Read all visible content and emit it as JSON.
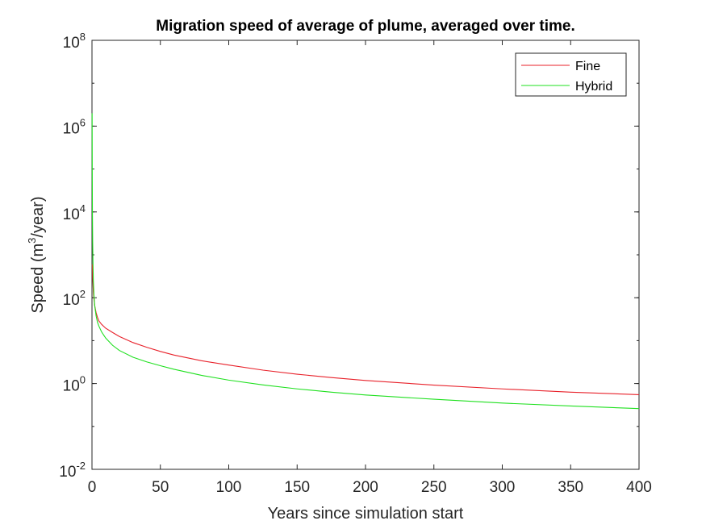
{
  "chart_data": {
    "type": "line",
    "title": "Migration speed of average of plume, averaged over time.",
    "xlabel": "Years since simulation start",
    "ylabel": {
      "prefix": "Speed (m",
      "superscript": "3",
      "suffix": "/year)"
    },
    "xlim": [
      0,
      400
    ],
    "ylim": [
      0.01,
      100000000
    ],
    "yscale": "log",
    "xticks": [
      0,
      50,
      100,
      150,
      200,
      250,
      300,
      350,
      400
    ],
    "yticks": [
      {
        "value": 0.01,
        "base": "10",
        "exp": "-2"
      },
      {
        "value": 1,
        "base": "10",
        "exp": "0"
      },
      {
        "value": 100,
        "base": "10",
        "exp": "2"
      },
      {
        "value": 10000,
        "base": "10",
        "exp": "4"
      },
      {
        "value": 1000000,
        "base": "10",
        "exp": "6"
      },
      {
        "value": 100000000,
        "base": "10",
        "exp": "8"
      }
    ],
    "grid": false,
    "legend": "top-right",
    "series": [
      {
        "name": "Fine",
        "color": "#e8212a",
        "x": [
          0.25,
          0.5,
          1,
          1.5,
          2,
          3,
          4,
          5,
          7,
          10,
          15,
          20,
          30,
          40,
          50,
          60,
          80,
          100,
          125,
          150,
          175,
          200,
          250,
          300,
          350,
          400
        ],
        "y": [
          600,
          300,
          140,
          90,
          65,
          45,
          35,
          29,
          24,
          19.5,
          15.5,
          12.5,
          9,
          7,
          5.6,
          4.6,
          3.4,
          2.7,
          2.05,
          1.65,
          1.38,
          1.18,
          0.92,
          0.75,
          0.63,
          0.55
        ]
      },
      {
        "name": "Hybrid",
        "color": "#1fe01f",
        "x": [
          0.1,
          0.2,
          0.3,
          0.5,
          0.75,
          1,
          1.5,
          2,
          3,
          4,
          5,
          7,
          10,
          15,
          20,
          30,
          40,
          50,
          60,
          80,
          100,
          125,
          150,
          175,
          200,
          250,
          300,
          350,
          400
        ],
        "y": [
          2000000,
          100000,
          12000,
          2000,
          600,
          250,
          110,
          65,
          38,
          27,
          22,
          16,
          11.5,
          7.8,
          5.9,
          4.1,
          3.2,
          2.6,
          2.15,
          1.55,
          1.2,
          0.93,
          0.75,
          0.63,
          0.54,
          0.43,
          0.35,
          0.3,
          0.26
        ]
      }
    ]
  }
}
